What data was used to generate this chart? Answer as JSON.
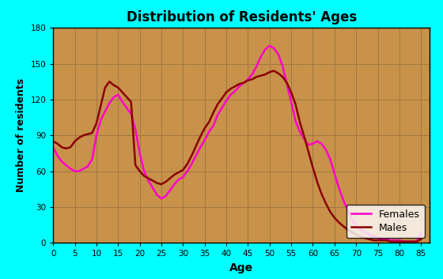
{
  "title": "Distribution of Residents' Ages",
  "xlabel": "Age",
  "ylabel": "Number of residents",
  "background_outer": "#00FFFF",
  "background_inner": "#C8924A",
  "grid_color": "#A07840",
  "ylim": [
    0,
    180
  ],
  "xlim": [
    0,
    87
  ],
  "yticks": [
    0,
    30,
    60,
    90,
    120,
    150,
    180
  ],
  "xticks": [
    0,
    5,
    10,
    15,
    20,
    25,
    30,
    35,
    40,
    45,
    50,
    55,
    60,
    65,
    70,
    75,
    80,
    85
  ],
  "males_color": "#8B0000",
  "females_color": "#FF00CC",
  "legend_bg": "#FFFFFF",
  "ages": [
    0,
    1,
    2,
    3,
    4,
    5,
    6,
    7,
    8,
    9,
    10,
    11,
    12,
    13,
    14,
    15,
    16,
    17,
    18,
    19,
    20,
    21,
    22,
    23,
    24,
    25,
    26,
    27,
    28,
    29,
    30,
    31,
    32,
    33,
    34,
    35,
    36,
    37,
    38,
    39,
    40,
    41,
    42,
    43,
    44,
    45,
    46,
    47,
    48,
    49,
    50,
    51,
    52,
    53,
    54,
    55,
    56,
    57,
    58,
    59,
    60,
    61,
    62,
    63,
    64,
    65,
    66,
    67,
    68,
    69,
    70,
    71,
    72,
    73,
    74,
    75,
    76,
    77,
    78,
    79,
    80,
    81,
    82,
    83,
    84,
    85
  ],
  "males": [
    85,
    83,
    80,
    79,
    80,
    85,
    88,
    90,
    91,
    92,
    100,
    115,
    130,
    135,
    132,
    130,
    126,
    122,
    118,
    65,
    60,
    56,
    54,
    52,
    50,
    49,
    51,
    54,
    57,
    59,
    61,
    66,
    73,
    81,
    89,
    96,
    101,
    109,
    116,
    121,
    126,
    129,
    131,
    133,
    134,
    136,
    137,
    139,
    140,
    141,
    143,
    144,
    142,
    139,
    134,
    126,
    116,
    101,
    89,
    76,
    63,
    51,
    41,
    33,
    26,
    21,
    17,
    14,
    11,
    9,
    7,
    5,
    4,
    3,
    2,
    2,
    2,
    2,
    1,
    1,
    1,
    1,
    1,
    1,
    1,
    3
  ],
  "females": [
    80,
    73,
    68,
    65,
    62,
    60,
    60,
    62,
    64,
    70,
    90,
    103,
    110,
    117,
    122,
    124,
    118,
    113,
    108,
    95,
    75,
    60,
    52,
    46,
    40,
    37,
    39,
    44,
    49,
    53,
    55,
    60,
    66,
    73,
    80,
    86,
    93,
    98,
    107,
    113,
    119,
    124,
    127,
    131,
    134,
    137,
    141,
    148,
    156,
    162,
    165,
    163,
    158,
    148,
    133,
    118,
    102,
    93,
    87,
    82,
    83,
    85,
    83,
    78,
    70,
    58,
    46,
    36,
    28,
    20,
    14,
    11,
    9,
    7,
    5,
    4,
    3,
    3,
    2,
    2,
    2,
    1,
    1,
    1,
    1,
    8
  ]
}
